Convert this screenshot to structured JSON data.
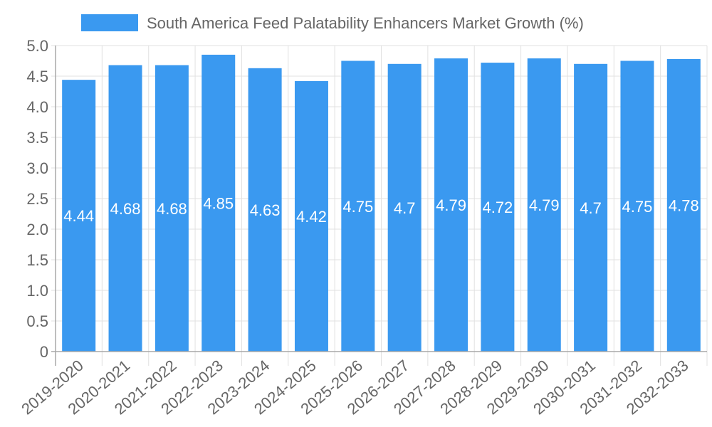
{
  "legend": {
    "label": "South America Feed Palatability Enhancers Market Growth (%)",
    "color": "#3a99f0"
  },
  "colors": {
    "bar": "#3a99f0",
    "grid": "#e1e1e1",
    "axis": "#a8a8a8",
    "text": "#666666",
    "data_label": "#ffffff"
  },
  "chart_data": {
    "type": "bar",
    "title": "",
    "xlabel": "",
    "ylabel": "",
    "ylim": [
      0,
      5.0
    ],
    "yticks": [
      "0",
      "0.5",
      "1.0",
      "1.5",
      "2.0",
      "2.5",
      "3.0",
      "3.5",
      "4.0",
      "4.5",
      "5.0"
    ],
    "grid": true,
    "legend_position": "top",
    "categories": [
      "2019-2020",
      "2020-2021",
      "2021-2022",
      "2022-2023",
      "2023-2024",
      "2024-2025",
      "2025-2026",
      "2026-2027",
      "2027-2028",
      "2028-2029",
      "2029-2030",
      "2030-2031",
      "2031-2032",
      "2032-2033"
    ],
    "series": [
      {
        "name": "South America Feed Palatability Enhancers Market Growth (%)",
        "values": [
          4.44,
          4.68,
          4.68,
          4.85,
          4.63,
          4.42,
          4.75,
          4.7,
          4.79,
          4.72,
          4.79,
          4.7,
          4.75,
          4.78
        ],
        "labels": [
          "4.44",
          "4.68",
          "4.68",
          "4.85",
          "4.63",
          "4.42",
          "4.75",
          "4.7",
          "4.79",
          "4.72",
          "4.79",
          "4.7",
          "4.75",
          "4.78"
        ]
      }
    ]
  }
}
